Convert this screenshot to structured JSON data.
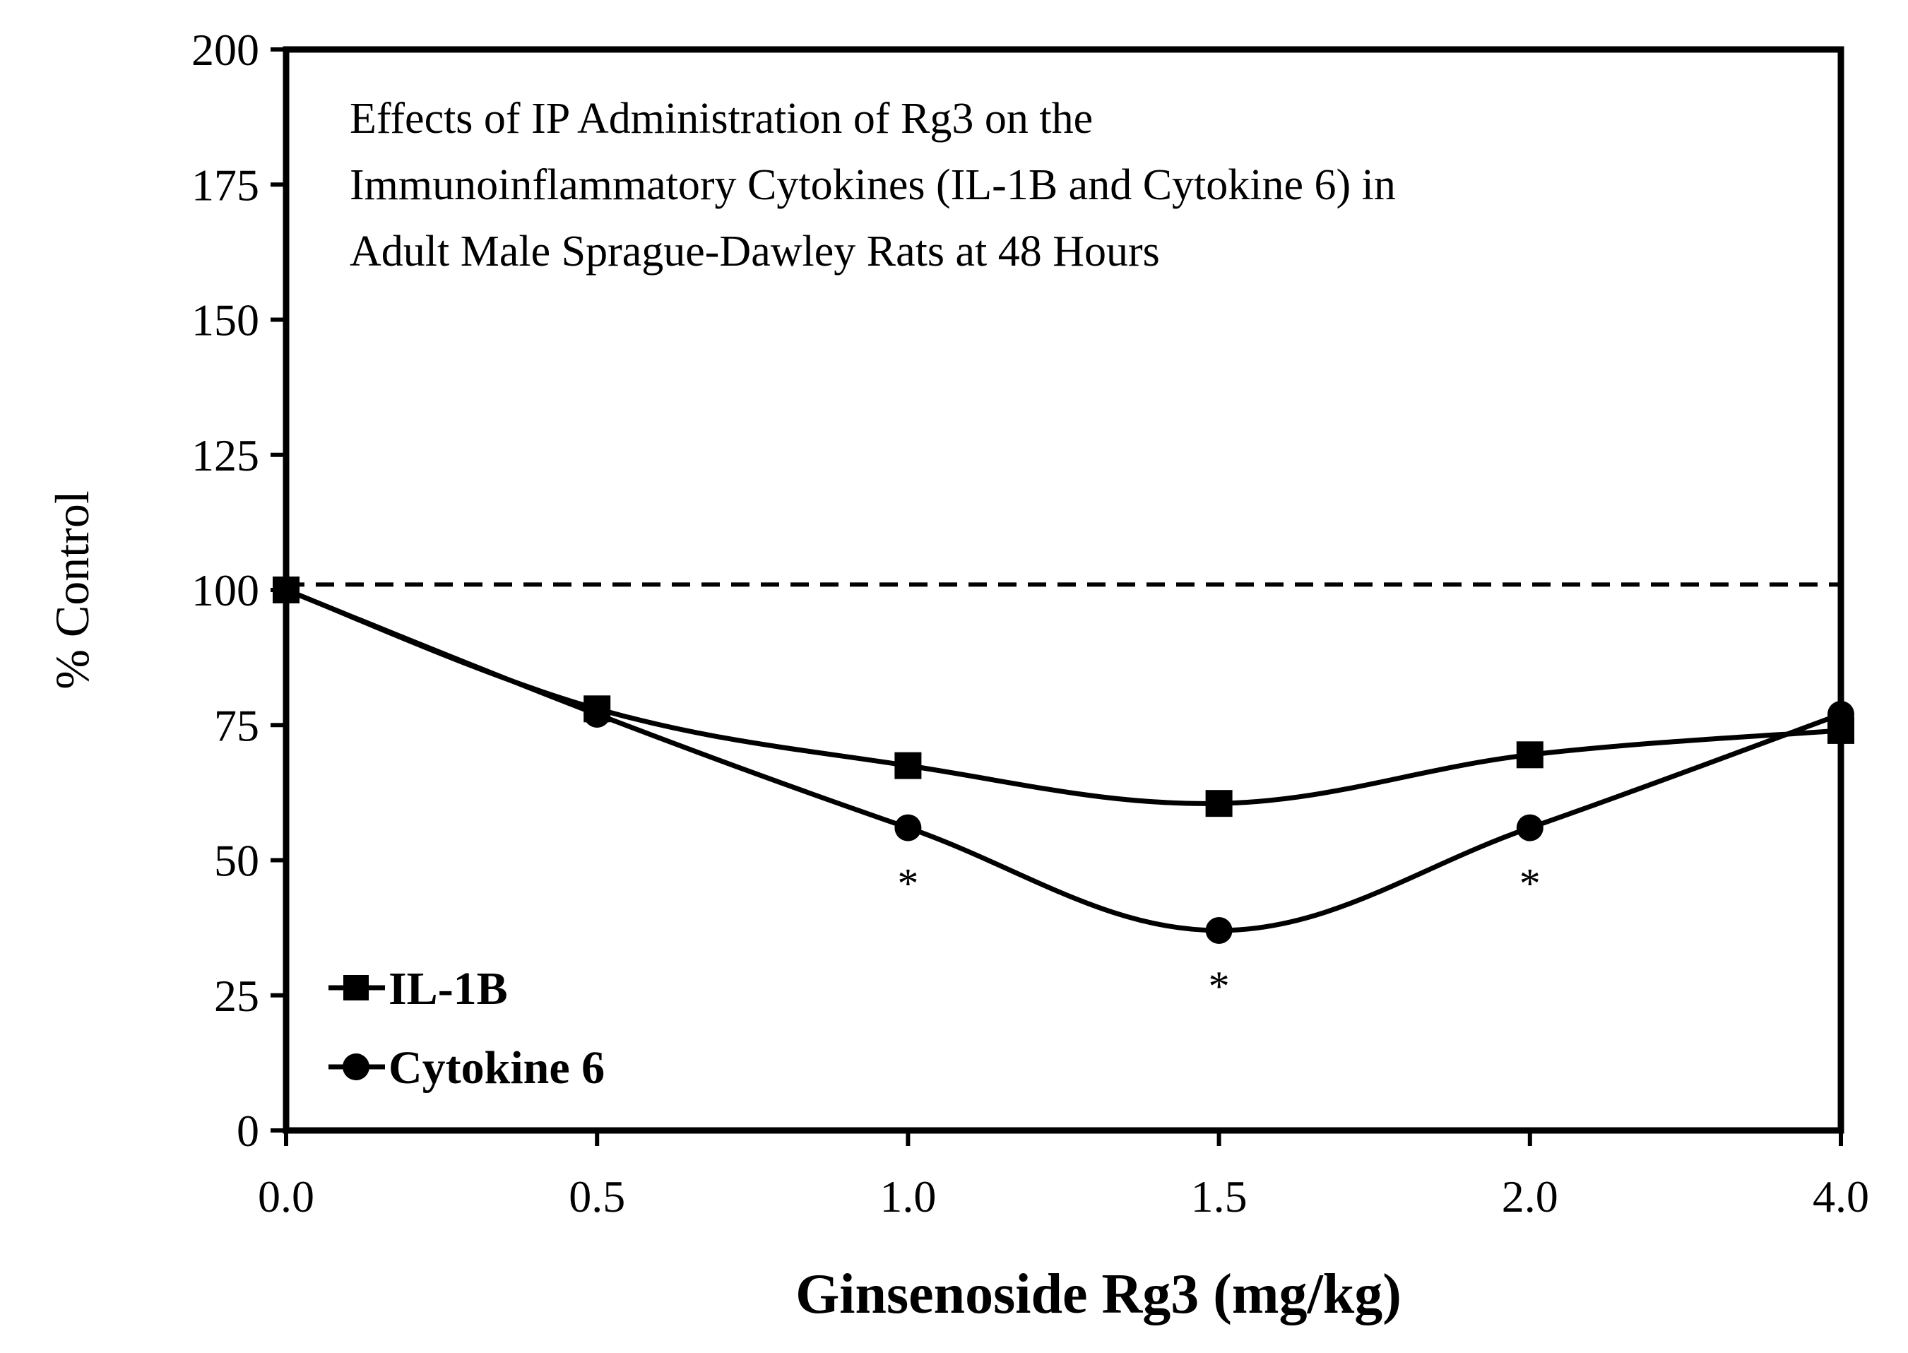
{
  "chart_data": {
    "type": "line",
    "title_lines": [
      "Effects of IP Administration of Rg3 on the",
      "Immunoinflammatory Cytokines (IL-1B and Cytokine 6) in",
      "Adult Male Sprague-Dawley Rats at 48 Hours"
    ],
    "xlabel": "Ginsenoside Rg3 (mg/kg)",
    "ylabel": "% Control",
    "categories": [
      "0.0",
      "0.5",
      "1.0",
      "1.5",
      "2.0",
      "4.0"
    ],
    "ylim": [
      0,
      200
    ],
    "yticks": [
      0,
      25,
      50,
      75,
      100,
      125,
      150,
      175,
      200
    ],
    "reference_line": 101,
    "series": [
      {
        "name": "IL-1B",
        "marker": "square",
        "values": [
          100,
          78,
          67.5,
          60.5,
          69.5,
          74
        ]
      },
      {
        "name": "Cytokine 6",
        "marker": "circle",
        "values": [
          100,
          77,
          56,
          37,
          56,
          77
        ]
      }
    ],
    "annotations": [
      {
        "text": "*",
        "category_index": 2,
        "y": 47
      },
      {
        "text": "*",
        "category_index": 3,
        "y": 28
      },
      {
        "text": "*",
        "category_index": 4,
        "y": 47
      }
    ],
    "legend_position": "bottom-left",
    "grid": false
  }
}
